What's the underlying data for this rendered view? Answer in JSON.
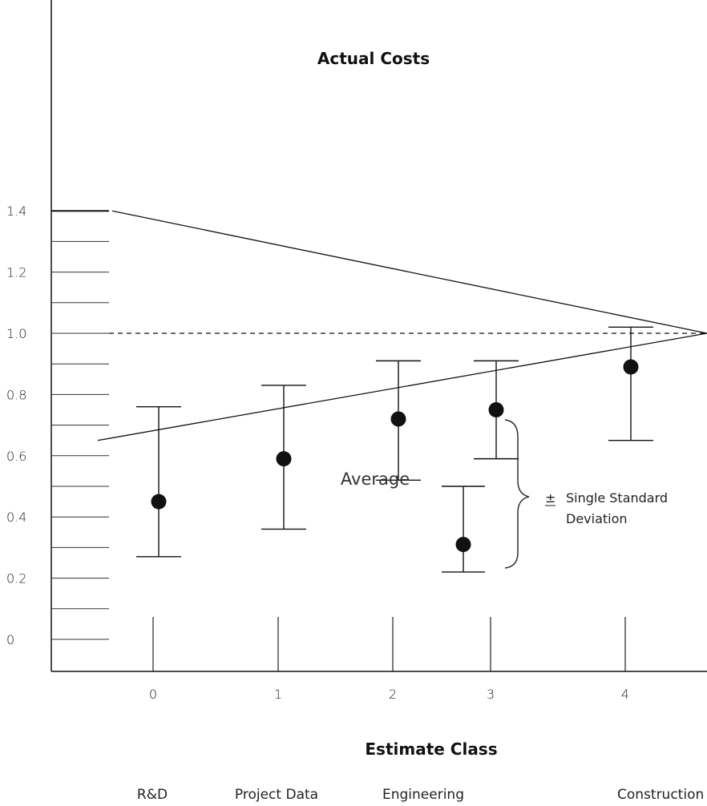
{
  "chart_data": {
    "type": "scatter",
    "title": "Actual Costs",
    "xlabel": "Estimate Class",
    "ylabel": "",
    "x_ticks": [
      "0",
      "1",
      "2",
      "3",
      "4"
    ],
    "y_ticks": [
      "0",
      "0.2",
      "0.4",
      "0.6",
      "0.8",
      "1.0",
      "1.2",
      "1.4"
    ],
    "category_labels": [
      "R&D",
      "Project Data",
      "Engineering",
      "Construction"
    ],
    "series": [
      {
        "points": [
          {
            "x": 0,
            "mean": 0.45,
            "low": 0.27,
            "high": 0.76
          },
          {
            "x": 1,
            "mean": 0.59,
            "low": 0.36,
            "high": 0.83
          },
          {
            "x": 2,
            "mean": 0.72,
            "low": 0.52,
            "high": 0.91
          },
          {
            "x": 3,
            "mean": 0.75,
            "low": 0.59,
            "high": 0.91
          },
          {
            "x": 4,
            "mean": 0.89,
            "low": 0.65,
            "high": 1.02
          }
        ]
      }
    ],
    "legend_example": {
      "mean": 0.31,
      "low": 0.22,
      "high": 0.5
    },
    "reference_line": 1.0,
    "envelope": {
      "upper_start": 1.4,
      "lower_start": 0.65,
      "converge": 1.0
    },
    "annotations": {
      "average": "Average",
      "sd_symbol": "±",
      "sd_line1": "Single Standard",
      "sd_line2": "Deviation"
    },
    "ylim": [
      -0.05,
      1.58
    ],
    "grid": false
  }
}
